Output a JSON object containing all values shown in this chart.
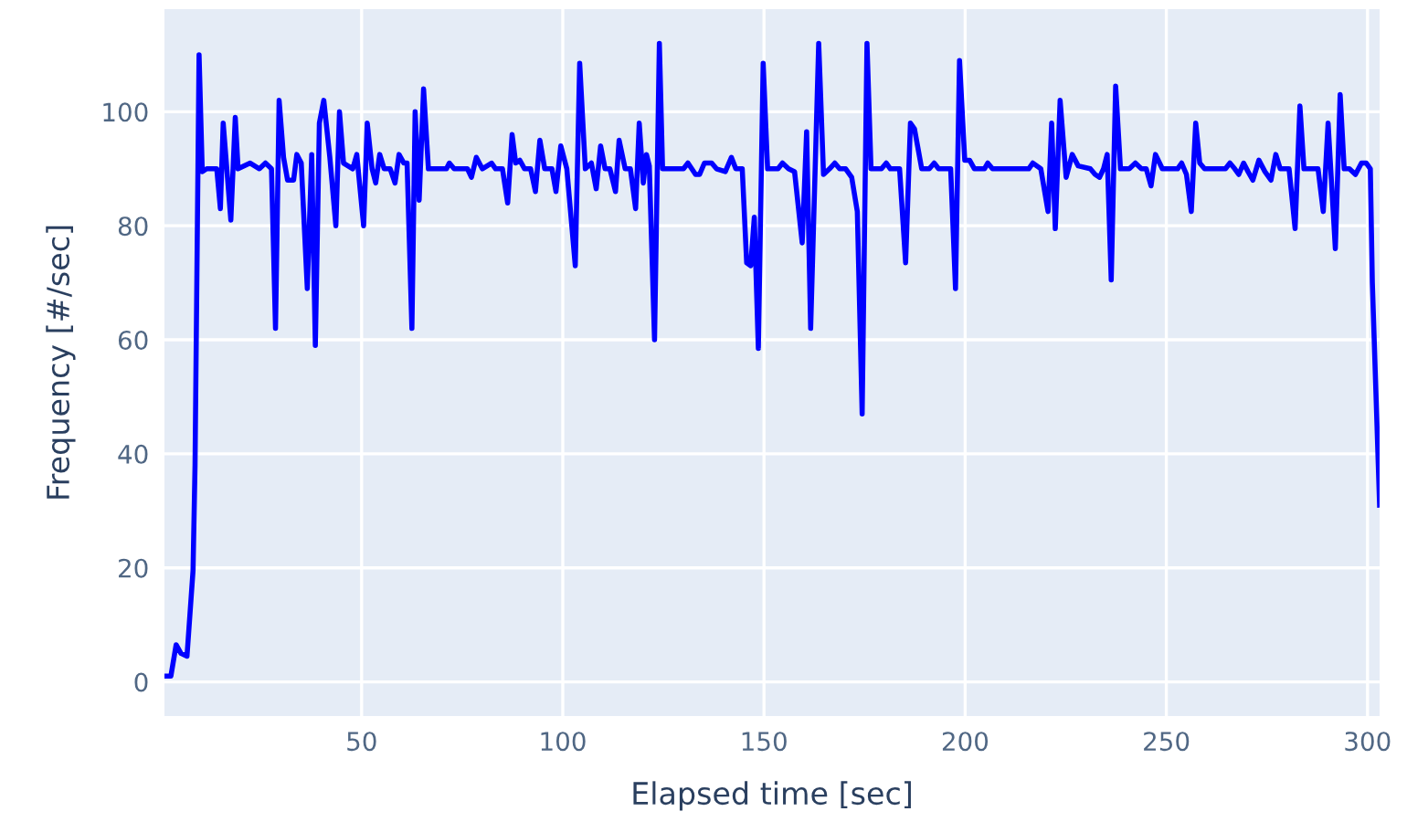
{
  "chart_data": {
    "type": "line",
    "xlabel": "Elapsed time [sec]",
    "ylabel": "Frequency [#/sec]",
    "color": "#0000ff",
    "grid": true,
    "xlim": [
      1,
      303
    ],
    "ylim": [
      -6,
      118
    ],
    "xticks": [
      50,
      100,
      150,
      200,
      250,
      300
    ],
    "yticks": [
      0,
      20,
      40,
      60,
      80,
      100
    ],
    "x": [
      1,
      2.6,
      3.9,
      5.1,
      6.6,
      8.1,
      8.6,
      9.6,
      10.4,
      11.5,
      14.0,
      14.9,
      15.6,
      17.5,
      18.6,
      19.3,
      22.3,
      24.6,
      26.1,
      27.6,
      28.6,
      29.5,
      30.6,
      31.6,
      33.1,
      33.9,
      35.0,
      36.5,
      37.6,
      38.5,
      39.5,
      40.6,
      42.1,
      43.6,
      44.5,
      45.5,
      47.8,
      48.8,
      50.5,
      51.4,
      52.6,
      53.5,
      54.5,
      55.6,
      57.1,
      58.3,
      59.3,
      60.5,
      61.3,
      62.5,
      63.3,
      64.3,
      65.4,
      66.6,
      71.1,
      71.8,
      73.0,
      76.3,
      77.3,
      78.5,
      80.0,
      82.3,
      83.3,
      85.0,
      86.3,
      87.4,
      88.3,
      89.3,
      90.5,
      92.0,
      93.2,
      94.3,
      95.5,
      97.3,
      98.3,
      99.5,
      101.0,
      103.1,
      104.2,
      105.6,
      107.1,
      108.3,
      109.4,
      110.5,
      111.7,
      113.1,
      114.0,
      115.5,
      116.8,
      118.1,
      119.0,
      120.0,
      120.8,
      121.5,
      122.8,
      124.0,
      124.8,
      130.0,
      131.1,
      133.0,
      134.0,
      135.2,
      137.0,
      138.2,
      140.4,
      141.9,
      143.0,
      144.6,
      145.7,
      146.7,
      147.6,
      148.6,
      149.8,
      150.9,
      153.5,
      154.6,
      156.1,
      157.6,
      159.5,
      160.6,
      161.6,
      163.6,
      164.8,
      166.3,
      167.6,
      168.8,
      170.3,
      171.8,
      173.2,
      174.4,
      175.6,
      176.6,
      179.2,
      180.4,
      181.4,
      183.7,
      185.2,
      186.4,
      187.4,
      189.2,
      191.1,
      192.3,
      193.4,
      196.4,
      197.6,
      198.6,
      199.9,
      201.1,
      202.3,
      204.8,
      205.6,
      206.8,
      215.8,
      216.8,
      218.8,
      220.6,
      221.5,
      222.4,
      223.6,
      225.1,
      226.6,
      228.1,
      231.1,
      232.3,
      233.4,
      234.4,
      235.3,
      236.3,
      237.4,
      238.6,
      240.8,
      242.3,
      243.8,
      245.0,
      246.2,
      247.3,
      249.0,
      252.8,
      253.8,
      255.0,
      256.2,
      257.3,
      258.3,
      259.5,
      264.7,
      265.8,
      267.0,
      268.0,
      269.2,
      270.3,
      271.5,
      273.0,
      274.5,
      276.0,
      277.2,
      278.3,
      280.5,
      282.0,
      283.2,
      284.2,
      286.2,
      287.7,
      289.0,
      290.2,
      292.0,
      293.2,
      294.2,
      295.5,
      297.0,
      298.5,
      299.7,
      300.7,
      301.2,
      303
    ],
    "values": [
      1,
      1,
      6.5,
      5,
      4.5,
      19.5,
      38,
      110,
      89.5,
      90,
      90,
      83,
      98,
      81,
      99,
      90,
      91,
      90,
      91,
      90,
      62,
      102,
      92,
      88,
      88,
      92.5,
      91,
      69,
      92.5,
      59,
      98,
      102,
      92,
      80,
      100,
      91,
      90,
      92.5,
      80,
      98,
      90,
      87.5,
      92.5,
      90,
      90,
      87.5,
      92.5,
      91,
      91,
      62,
      100,
      84.5,
      104,
      90,
      90,
      91,
      90,
      90,
      88.5,
      92,
      90,
      91,
      90,
      90,
      84,
      96,
      91,
      91.5,
      90,
      90,
      86,
      95,
      90,
      90,
      86,
      94,
      90,
      73,
      108.5,
      90,
      91,
      86.5,
      94,
      90,
      90,
      86,
      95,
      90,
      90,
      83,
      98,
      87.5,
      92.5,
      90.5,
      60,
      112,
      90,
      90,
      91,
      89,
      89,
      91,
      91,
      90,
      89.5,
      92,
      90,
      90,
      73.5,
      73,
      81.5,
      58.5,
      108.5,
      90,
      90,
      91,
      90,
      89.5,
      77,
      96.5,
      62,
      112,
      89,
      90,
      91,
      90,
      90,
      88.5,
      82.5,
      47,
      112,
      90,
      90,
      91,
      90,
      90,
      73.5,
      98,
      97,
      90,
      90,
      91,
      90,
      90,
      69,
      109,
      91.5,
      91.5,
      90,
      90,
      91,
      90,
      90,
      91,
      90,
      82.5,
      98,
      79.5,
      102,
      88.5,
      92.5,
      90.5,
      90,
      89,
      88.5,
      90,
      92.5,
      70.5,
      104.5,
      90,
      90,
      91,
      90,
      90,
      87,
      92.5,
      90,
      90,
      91,
      89,
      82.5,
      98,
      91,
      90,
      90,
      91,
      90,
      89,
      91,
      89.5,
      88,
      91.5,
      89.5,
      88,
      92.5,
      90,
      90,
      79.5,
      101,
      90,
      90,
      90,
      82.5,
      98,
      76,
      103,
      90,
      90,
      89,
      91,
      91,
      90,
      70,
      31
    ]
  }
}
